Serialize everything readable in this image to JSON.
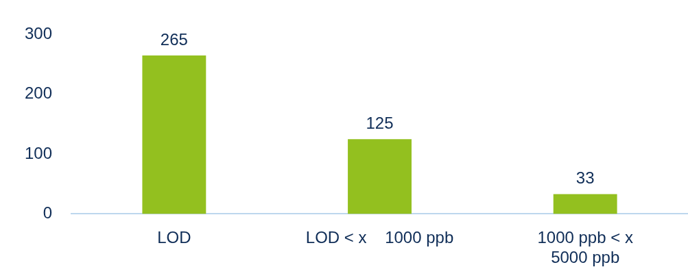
{
  "chart_data": {
    "type": "bar",
    "categories": [
      "LOD",
      "LOD < x    1000 ppb",
      "1000 ppb < x\n5000 ppb"
    ],
    "values": [
      265,
      125,
      33
    ],
    "color": "#93c01f",
    "ylim": [
      0,
      300
    ],
    "yticks": [
      0,
      100,
      200,
      300
    ],
    "grid": false,
    "legend": false,
    "data_labels": true
  }
}
